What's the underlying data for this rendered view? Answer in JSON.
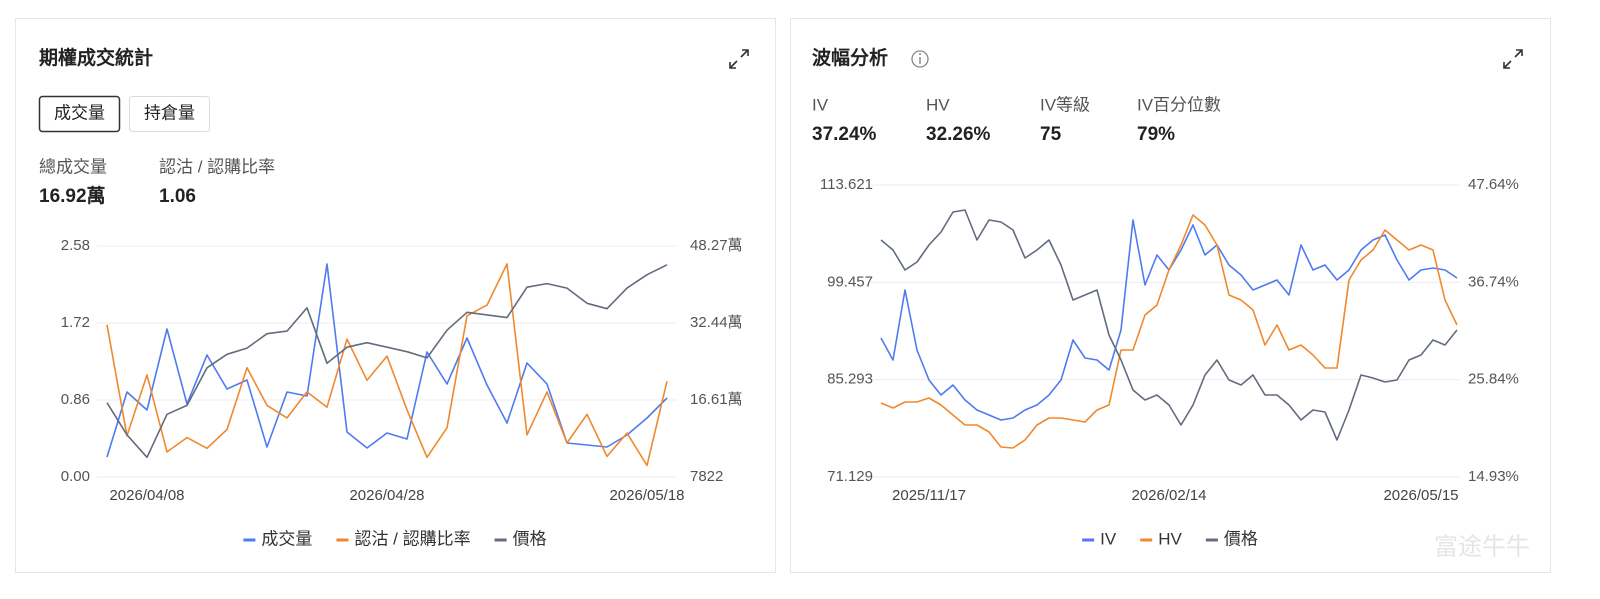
{
  "panels": [
    {
      "title": "期權成交統計",
      "tabs": [
        "成交量",
        "持倉量"
      ],
      "stats": [
        {
          "label": "總成交量",
          "value": "16.92萬"
        },
        {
          "label": "認沽 / 認購比率",
          "value": "1.06"
        }
      ]
    },
    {
      "title": "波幅分析",
      "stats": [
        {
          "label": "IV",
          "value": "37.24%"
        },
        {
          "label": "HV",
          "value": "32.26%"
        },
        {
          "label": "IV等級",
          "value": "75"
        },
        {
          "label": "IV百分位數",
          "value": "79%"
        }
      ]
    }
  ],
  "watermark": "富途牛牛",
  "chart_data": [
    {
      "type": "line",
      "categories": [
        null,
        null,
        "2026/04/08",
        null,
        null,
        null,
        null,
        null,
        null,
        null,
        null,
        null,
        null,
        null,
        "2026/04/28",
        null,
        null,
        null,
        null,
        null,
        null,
        null,
        null,
        null,
        null,
        null,
        null,
        "2026/05/18",
        null
      ],
      "ylim": [
        0,
        2.58
      ],
      "yticks": [
        {
          "value": 0,
          "label": "0.00"
        },
        {
          "value": 0.86,
          "label": "0.86"
        },
        {
          "value": 1.72,
          "label": "1.72"
        },
        {
          "value": 2.58,
          "label": "2.58"
        }
      ],
      "y2lim": [
        7822,
        482700
      ],
      "y2ticks": [
        7822,
        {
          "value": 166100,
          "label": "16.61萬"
        },
        {
          "value": 324400,
          "label": "32.44萬"
        },
        {
          "value": 482700,
          "label": "48.27萬"
        }
      ],
      "grid": true,
      "series": [
        {
          "name": "成交量",
          "color": "#4e7bef",
          "axis": "y2",
          "values": [
            48900,
            182600,
            145500,
            312100,
            157900,
            258600,
            188700,
            207200,
            69500,
            182600,
            174300,
            445700,
            100300,
            67400,
            98300,
            85900,
            264800,
            199000,
            293500,
            196900,
            118800,
            242200,
            199000,
            77700,
            73600,
            69500,
            94100,
            129100,
            170200
          ]
        },
        {
          "name": "認沽 / 認購比率",
          "color": "#f0892e",
          "values": [
            1.7,
            0.46,
            1.14,
            0.28,
            0.44,
            0.32,
            0.53,
            1.22,
            0.8,
            0.66,
            0.95,
            0.78,
            1.54,
            1.08,
            1.35,
            0.75,
            0.22,
            0.55,
            1.8,
            1.92,
            2.38,
            0.47,
            0.95,
            0.38,
            0.7,
            0.23,
            0.49,
            0.13,
            1.07
          ]
        },
        {
          "name": "價格",
          "color": "#626b7f",
          "values": [
            0.83,
            0.47,
            0.22,
            0.7,
            0.8,
            1.22,
            1.37,
            1.44,
            1.6,
            1.63,
            1.89,
            1.27,
            1.45,
            1.5,
            1.45,
            1.4,
            1.33,
            1.64,
            1.84,
            1.81,
            1.78,
            2.12,
            2.16,
            2.11,
            1.94,
            1.88,
            2.11,
            2.26,
            2.37
          ]
        }
      ]
    },
    {
      "type": "line",
      "categories": [
        null,
        null,
        null,
        null,
        "2025/11/17",
        null,
        null,
        null,
        null,
        null,
        null,
        null,
        null,
        null,
        null,
        null,
        null,
        null,
        null,
        null,
        null,
        null,
        null,
        null,
        "2026/02/14",
        null,
        null,
        null,
        null,
        null,
        null,
        null,
        null,
        null,
        null,
        null,
        null,
        null,
        null,
        null,
        null,
        null,
        null,
        null,
        null,
        "2026/05/15",
        null,
        null,
        null
      ],
      "ylim": [
        71.129,
        113.621
      ],
      "yticks": [
        71.129,
        85.293,
        99.457,
        113.621
      ],
      "y2lim": [
        14.93,
        47.64
      ],
      "y2ticks": [
        {
          "value": 14.93,
          "label": "14.93%"
        },
        {
          "value": 25.84,
          "label": "25.84%"
        },
        {
          "value": 36.74,
          "label": "36.74%"
        },
        {
          "value": 47.64,
          "label": "47.64%"
        }
      ],
      "grid": true,
      "series": [
        {
          "name": "IV",
          "color": "#4e7bef",
          "axis": "y2",
          "values": [
            30.5,
            28.04,
            35.88,
            29.16,
            25.8,
            24.12,
            25.24,
            23.56,
            22.44,
            21.88,
            21.32,
            21.54,
            22.44,
            23.0,
            24.12,
            25.8,
            30.28,
            28.26,
            28.04,
            26.92,
            31.4,
            43.72,
            36.44,
            39.8,
            38.12,
            40.36,
            43.16,
            39.8,
            40.92,
            38.68,
            37.56,
            35.88,
            36.44,
            37.0,
            35.32,
            40.92,
            38.12,
            38.68,
            37.0,
            38.12,
            40.36,
            41.48,
            42.04,
            39.24,
            37.0,
            38.12,
            38.34,
            38.12,
            37.22
          ]
        },
        {
          "name": "HV",
          "color": "#f0892e",
          "axis": "y2",
          "values": [
            23.22,
            22.66,
            23.33,
            23.33,
            23.78,
            23.0,
            21.88,
            20.76,
            20.76,
            19.97,
            18.29,
            18.18,
            19.07,
            20.76,
            21.54,
            21.54,
            21.32,
            21.09,
            22.44,
            23.0,
            29.16,
            29.16,
            33.08,
            34.2,
            38.12,
            40.92,
            44.28,
            43.16,
            40.92,
            35.32,
            34.76,
            33.64,
            29.72,
            31.96,
            29.16,
            29.72,
            28.6,
            27.14,
            27.14,
            37.0,
            39.24,
            40.36,
            42.6,
            41.48,
            40.36,
            40.92,
            40.36,
            34.76,
            31.96
          ]
        },
        {
          "name": "價格",
          "color": "#626b7f",
          "values": [
            105.62,
            104.16,
            101.25,
            102.42,
            104.89,
            106.78,
            109.69,
            109.98,
            105.62,
            108.53,
            108.24,
            107.07,
            103.0,
            104.16,
            105.62,
            101.98,
            96.89,
            97.61,
            98.34,
            91.79,
            88.16,
            83.79,
            82.34,
            83.06,
            81.61,
            78.7,
            81.61,
            85.97,
            88.16,
            85.25,
            84.52,
            85.97,
            83.06,
            83.06,
            81.61,
            79.42,
            80.88,
            80.59,
            76.51,
            80.88,
            85.97,
            85.54,
            84.95,
            85.25,
            88.16,
            88.88,
            91.07,
            90.34,
            92.52
          ]
        }
      ]
    }
  ]
}
